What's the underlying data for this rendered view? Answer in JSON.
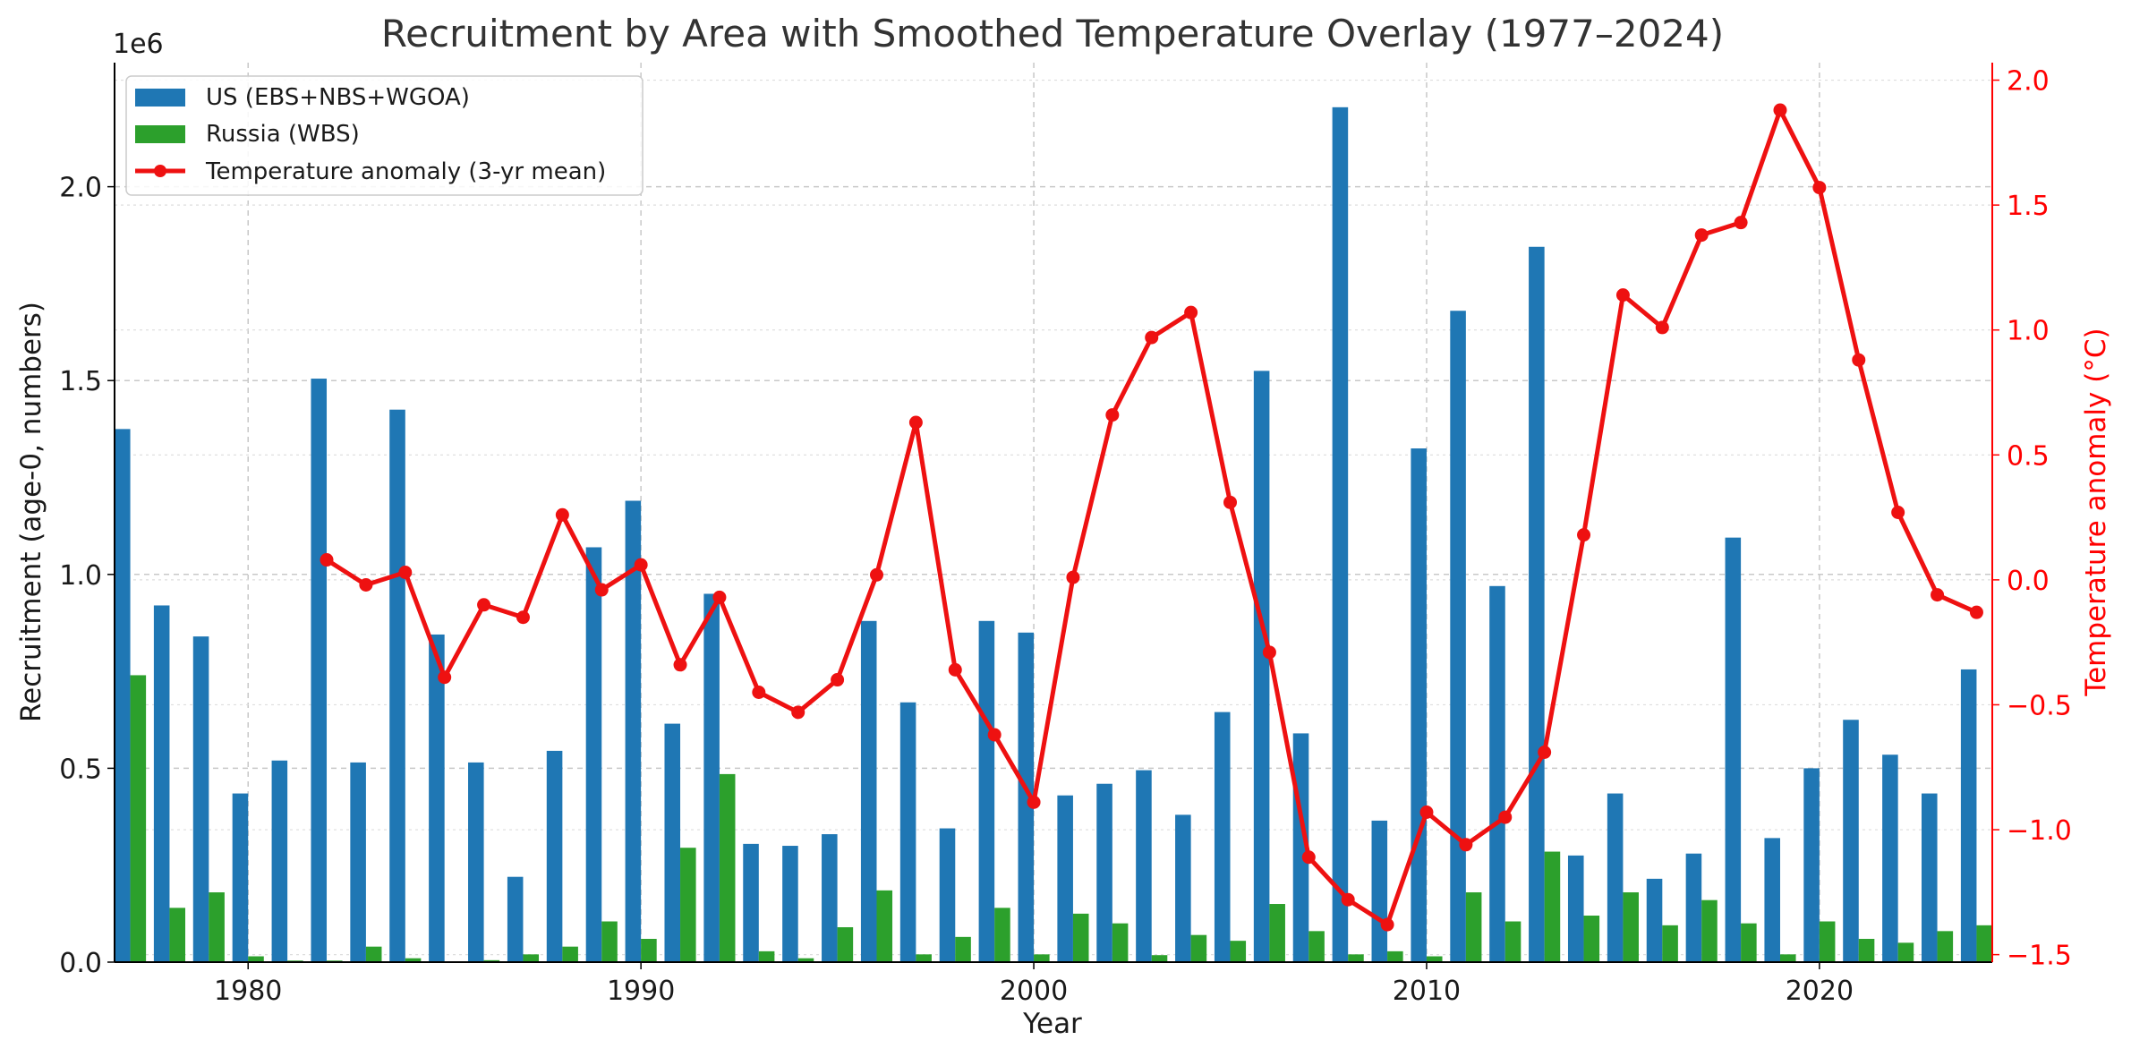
{
  "chart_data": {
    "type": "bar",
    "title": "Recruitment by Area with Smoothed Temperature Overlay (1977–2024)",
    "xlabel": "Year",
    "ylabel": "Recruitment (age-0, numbers)",
    "y2label": "Temperature anomaly (°C)",
    "y_offset_label": "1e6",
    "xlim": [
      1976.6,
      2024.4
    ],
    "ylim": [
      0,
      2.32
    ],
    "y2lim": [
      -1.53,
      2.07
    ],
    "x_ticks": [
      1980,
      1990,
      2000,
      2010,
      2020
    ],
    "y_ticks": [
      0.0,
      0.5,
      1.0,
      1.5,
      2.0
    ],
    "y_tick_labels": [
      "0.0",
      "0.5",
      "1.0",
      "1.5",
      "2.0"
    ],
    "y2_ticks": [
      -1.5,
      -1.0,
      -0.5,
      0.0,
      0.5,
      1.0,
      1.5,
      2.0
    ],
    "y2_tick_labels": [
      "−1.5",
      "−1.0",
      "−0.5",
      "0.0",
      "0.5",
      "1.0",
      "1.5",
      "2.0"
    ],
    "grid": true,
    "legend_position": "top-left",
    "colors": {
      "us": "#1f77b4",
      "russia": "#2ca02c",
      "temp": "#ee1111",
      "right_axis": "#ff0000"
    },
    "years": [
      1977,
      1978,
      1979,
      1980,
      1981,
      1982,
      1983,
      1984,
      1985,
      1986,
      1987,
      1988,
      1989,
      1990,
      1991,
      1992,
      1993,
      1994,
      1995,
      1996,
      1997,
      1998,
      1999,
      2000,
      2001,
      2002,
      2003,
      2004,
      2005,
      2006,
      2007,
      2008,
      2009,
      2010,
      2011,
      2012,
      2013,
      2014,
      2015,
      2016,
      2017,
      2018,
      2019,
      2020,
      2021,
      2022,
      2023,
      2024
    ],
    "series": [
      {
        "name": "US (EBS+NBS+WGOA)",
        "kind": "bar",
        "values": [
          1.375,
          0.92,
          0.84,
          0.435,
          0.52,
          1.505,
          0.515,
          1.425,
          0.845,
          0.515,
          0.22,
          0.545,
          1.07,
          1.19,
          0.615,
          0.95,
          0.305,
          0.3,
          0.33,
          0.88,
          0.67,
          0.345,
          0.88,
          0.85,
          0.43,
          0.46,
          0.495,
          0.38,
          0.645,
          1.525,
          0.59,
          2.205,
          0.365,
          1.325,
          1.68,
          0.97,
          1.845,
          0.275,
          0.435,
          0.215,
          0.28,
          1.095,
          0.32,
          0.5,
          0.625,
          0.535,
          0.435,
          0.755
        ]
      },
      {
        "name": "Russia (WBS)",
        "kind": "bar",
        "values": [
          0.74,
          0.14,
          0.18,
          0.015,
          0.004,
          0.004,
          0.04,
          0.01,
          0.0,
          0.005,
          0.02,
          0.04,
          0.105,
          0.06,
          0.295,
          0.485,
          0.028,
          0.01,
          0.09,
          0.185,
          0.02,
          0.065,
          0.14,
          0.02,
          0.125,
          0.1,
          0.018,
          0.07,
          0.055,
          0.15,
          0.08,
          0.02,
          0.028,
          0.015,
          0.18,
          0.105,
          0.285,
          0.12,
          0.18,
          0.095,
          0.16,
          0.1,
          0.02,
          0.105,
          0.06,
          0.05,
          0.08,
          0.095
        ]
      },
      {
        "name": "Temperature anomaly (3-yr mean)",
        "kind": "line",
        "axis": "right",
        "x": [
          1982,
          1983,
          1984,
          1985,
          1986,
          1987,
          1988,
          1989,
          1990,
          1991,
          1992,
          1993,
          1994,
          1995,
          1996,
          1997,
          1998,
          1999,
          2000,
          2001,
          2002,
          2003,
          2004,
          2005,
          2006,
          2007,
          2008,
          2009,
          2010,
          2011,
          2012,
          2013,
          2014,
          2015,
          2016,
          2017,
          2018,
          2019,
          2020,
          2021,
          2022,
          2023,
          2024
        ],
        "values": [
          0.08,
          -0.02,
          0.03,
          -0.39,
          -0.1,
          -0.15,
          0.26,
          -0.04,
          0.06,
          -0.34,
          -0.07,
          -0.45,
          -0.53,
          -0.4,
          0.02,
          0.63,
          -0.36,
          -0.62,
          -0.89,
          0.01,
          0.66,
          0.97,
          1.07,
          0.31,
          -0.29,
          -1.11,
          -1.28,
          -1.38,
          -0.93,
          -1.06,
          -0.95,
          -0.69,
          0.18,
          1.14,
          1.01,
          1.38,
          1.43,
          1.88,
          1.57,
          0.88,
          0.27,
          -0.06,
          -0.13
        ]
      }
    ]
  }
}
